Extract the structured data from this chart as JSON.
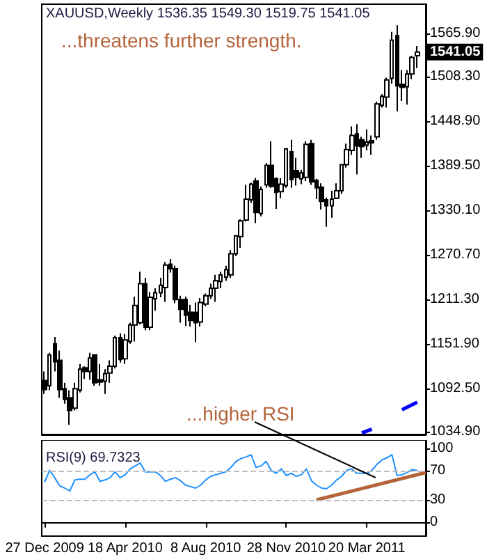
{
  "chart_data": [
    {
      "type": "candlestick",
      "title": "XAUUSD,Weekly 1536.35 1549.30 1519.75 1541.05",
      "annotations": [
        "...threatens further strength.",
        "...higher RSI",
        "1541.05"
      ],
      "x": [
        "2009-12-27",
        "2010-01-03",
        "2010-01-10",
        "2010-01-17",
        "2010-01-24",
        "2010-01-31",
        "2010-02-07",
        "2010-02-14",
        "2010-02-21",
        "2010-02-28",
        "2010-03-07",
        "2010-03-14",
        "2010-03-21",
        "2010-03-28",
        "2010-04-04",
        "2010-04-11",
        "2010-04-18",
        "2010-04-25",
        "2010-05-02",
        "2010-05-09",
        "2010-05-16",
        "2010-05-23",
        "2010-05-30",
        "2010-06-06",
        "2010-06-13",
        "2010-06-20",
        "2010-06-27",
        "2010-07-04",
        "2010-07-11",
        "2010-07-18",
        "2010-07-25",
        "2010-08-01",
        "2010-08-08",
        "2010-08-15",
        "2010-08-22",
        "2010-08-29",
        "2010-09-05",
        "2010-09-12",
        "2010-09-19",
        "2010-09-26",
        "2010-10-03",
        "2010-10-10",
        "2010-10-17",
        "2010-10-24",
        "2010-10-31",
        "2010-11-07",
        "2010-11-14",
        "2010-11-21",
        "2010-11-28",
        "2010-12-05",
        "2010-12-12",
        "2010-12-19",
        "2010-12-26",
        "2011-01-02",
        "2011-01-09",
        "2011-01-16",
        "2011-01-23",
        "2011-01-30",
        "2011-02-06",
        "2011-02-13",
        "2011-02-20",
        "2011-02-27",
        "2011-03-06",
        "2011-03-13",
        "2011-03-20",
        "2011-03-27",
        "2011-04-03",
        "2011-04-10",
        "2011-04-17",
        "2011-04-24",
        "2011-05-01",
        "2011-05-08",
        "2011-05-15",
        "2011-05-22",
        "2011-05-29"
      ],
      "ohlc": [
        [
          1103,
          1115,
          1085,
          1091
        ],
        [
          1096,
          1140,
          1090,
          1137
        ],
        [
          1152,
          1161,
          1115,
          1128
        ],
        [
          1130,
          1143,
          1080,
          1091
        ],
        [
          1092,
          1100,
          1072,
          1078
        ],
        [
          1080,
          1090,
          1044,
          1063
        ],
        [
          1066,
          1100,
          1063,
          1092
        ],
        [
          1090,
          1125,
          1087,
          1118
        ],
        [
          1120,
          1122,
          1105,
          1115
        ],
        [
          1115,
          1140,
          1104,
          1133
        ],
        [
          1137,
          1138,
          1096,
          1100
        ],
        [
          1104,
          1125,
          1096,
          1101
        ],
        [
          1102,
          1118,
          1085,
          1112
        ],
        [
          1113,
          1130,
          1100,
          1122
        ],
        [
          1122,
          1163,
          1119,
          1160
        ],
        [
          1160,
          1166,
          1127,
          1131
        ],
        [
          1132,
          1165,
          1125,
          1157
        ],
        [
          1155,
          1180,
          1152,
          1177
        ],
        [
          1177,
          1215,
          1155,
          1203
        ],
        [
          1180,
          1248,
          1178,
          1232
        ],
        [
          1232,
          1240,
          1170,
          1174
        ],
        [
          1174,
          1221,
          1170,
          1214
        ],
        [
          1212,
          1226,
          1196,
          1220
        ],
        [
          1220,
          1240,
          1214,
          1230
        ],
        [
          1227,
          1261,
          1208,
          1257
        ],
        [
          1258,
          1265,
          1247,
          1252
        ],
        [
          1252,
          1256,
          1206,
          1211
        ],
        [
          1211,
          1216,
          1180,
          1198
        ],
        [
          1211,
          1215,
          1176,
          1190
        ],
        [
          1194,
          1204,
          1175,
          1183
        ],
        [
          1194,
          1207,
          1154,
          1180
        ],
        [
          1181,
          1213,
          1175,
          1207
        ],
        [
          1205,
          1219,
          1202,
          1216
        ],
        [
          1216,
          1232,
          1212,
          1226
        ],
        [
          1226,
          1244,
          1208,
          1236
        ],
        [
          1235,
          1248,
          1226,
          1244
        ],
        [
          1241,
          1256,
          1236,
          1251
        ],
        [
          1244,
          1277,
          1240,
          1272
        ],
        [
          1272,
          1297,
          1269,
          1296
        ],
        [
          1295,
          1318,
          1280,
          1316
        ],
        [
          1317,
          1364,
          1315,
          1345
        ],
        [
          1344,
          1367,
          1340,
          1365
        ],
        [
          1369,
          1373,
          1313,
          1327
        ],
        [
          1326,
          1362,
          1322,
          1358
        ],
        [
          1364,
          1393,
          1360,
          1390
        ],
        [
          1390,
          1422,
          1360,
          1362
        ],
        [
          1372,
          1374,
          1332,
          1354
        ],
        [
          1355,
          1373,
          1346,
          1365
        ],
        [
          1363,
          1413,
          1360,
          1412
        ],
        [
          1408,
          1424,
          1360,
          1371
        ],
        [
          1383,
          1400,
          1363,
          1374
        ],
        [
          1372,
          1384,
          1365,
          1380
        ],
        [
          1374,
          1422,
          1369,
          1418
        ],
        [
          1419,
          1424,
          1364,
          1368
        ],
        [
          1370,
          1372,
          1345,
          1360
        ],
        [
          1361,
          1366,
          1331,
          1342
        ],
        [
          1344,
          1347,
          1308,
          1336
        ],
        [
          1336,
          1356,
          1320,
          1345
        ],
        [
          1346,
          1366,
          1345,
          1356
        ],
        [
          1356,
          1391,
          1352,
          1391
        ],
        [
          1391,
          1419,
          1387,
          1411
        ],
        [
          1410,
          1442,
          1404,
          1430
        ],
        [
          1432,
          1445,
          1378,
          1416
        ],
        [
          1424,
          1428,
          1400,
          1415
        ],
        [
          1417,
          1438,
          1410,
          1421
        ],
        [
          1423,
          1430,
          1404,
          1420
        ],
        [
          1428,
          1475,
          1424,
          1472
        ],
        [
          1470,
          1485,
          1467,
          1482
        ],
        [
          1481,
          1507,
          1467,
          1504
        ],
        [
          1506,
          1568,
          1499,
          1557
        ],
        [
          1563,
          1577,
          1462,
          1496
        ],
        [
          1498,
          1517,
          1476,
          1494
        ],
        [
          1495,
          1517,
          1471,
          1512
        ],
        [
          1512,
          1536,
          1505,
          1534
        ],
        [
          1536.35,
          1549.3,
          1519.75,
          1541.05
        ]
      ],
      "series": [
        {
          "type": "line",
          "color": "#0000ff",
          "x": [
            "2011-03-13",
            "2011-03-27",
            "2011-04-10",
            "2011-05-08",
            "2011-05-29"
          ],
          "values": [
            1033,
            1038,
            null,
            1064,
            1074
          ]
        }
      ],
      "xlim": [
        "2009-12-23",
        "2011-06-10"
      ],
      "ylim": [
        1031,
        1605
      ],
      "yticks": [
        {
          "value": 1034.9,
          "label": "1034.90"
        },
        {
          "value": 1092.5,
          "label": "1092.50"
        },
        {
          "value": 1151.9,
          "label": "1151.90"
        },
        {
          "value": 1211.3,
          "label": "1211.30"
        },
        {
          "value": 1270.7,
          "label": "1270.70"
        },
        {
          "value": 1330.1,
          "label": "1330.10"
        },
        {
          "value": 1389.5,
          "label": "1389.50"
        },
        {
          "value": 1448.9,
          "label": "1448.90"
        },
        {
          "value": 1508.3,
          "label": "1508.30"
        },
        {
          "value": 1565.9,
          "label": "1565.90"
        }
      ],
      "tick_labels": "y"
    },
    {
      "type": "line",
      "title": "RSI(9) 69.7323",
      "x": [
        "2009-12-27",
        "2010-01-03",
        "2010-01-10",
        "2010-01-17",
        "2010-01-24",
        "2010-01-31",
        "2010-02-07",
        "2010-02-14",
        "2010-02-21",
        "2010-02-28",
        "2010-03-07",
        "2010-03-14",
        "2010-03-21",
        "2010-03-28",
        "2010-04-04",
        "2010-04-11",
        "2010-04-18",
        "2010-04-25",
        "2010-05-02",
        "2010-05-09",
        "2010-05-16",
        "2010-05-23",
        "2010-05-30",
        "2010-06-06",
        "2010-06-13",
        "2010-06-20",
        "2010-06-27",
        "2010-07-04",
        "2010-07-11",
        "2010-07-18",
        "2010-07-25",
        "2010-08-01",
        "2010-08-08",
        "2010-08-15",
        "2010-08-22",
        "2010-08-29",
        "2010-09-05",
        "2010-09-12",
        "2010-09-19",
        "2010-09-26",
        "2010-10-03",
        "2010-10-10",
        "2010-10-17",
        "2010-10-24",
        "2010-10-31",
        "2010-11-07",
        "2010-11-14",
        "2010-11-21",
        "2010-11-28",
        "2010-12-05",
        "2010-12-12",
        "2010-12-19",
        "2010-12-26",
        "2011-01-02",
        "2011-01-09",
        "2011-01-16",
        "2011-01-23",
        "2011-01-30",
        "2011-02-06",
        "2011-02-13",
        "2011-02-20",
        "2011-02-27",
        "2011-03-06",
        "2011-03-13",
        "2011-03-20",
        "2011-03-27",
        "2011-04-03",
        "2011-04-10",
        "2011-04-17",
        "2011-04-24",
        "2011-05-01",
        "2011-05-08",
        "2011-05-15",
        "2011-05-22",
        "2011-05-29"
      ],
      "series": [
        {
          "color": "#1e90ff",
          "values": [
            54,
            70,
            60,
            49,
            46,
            42,
            57,
            58,
            58,
            64,
            68,
            55,
            57,
            60,
            68,
            60,
            64,
            72,
            76,
            80,
            68,
            68,
            68,
            63,
            55,
            58,
            60,
            56,
            50,
            48,
            46,
            50,
            57,
            62,
            64,
            66,
            68,
            74,
            82,
            86,
            88,
            91,
            74,
            76,
            82,
            70,
            66,
            72,
            63,
            66,
            62,
            64,
            72,
            56,
            50,
            46,
            45,
            50,
            57,
            62,
            70,
            72,
            66,
            66,
            66,
            70,
            78,
            84,
            87,
            91,
            63,
            64,
            67,
            71,
            70
          ]
        },
        {
          "type": "line",
          "color": "#b5643a",
          "x": [
            "2011-01-09",
            "2011-06-10"
          ],
          "values": [
            30,
            67
          ]
        }
      ],
      "xlim": [
        "2009-12-23",
        "2011-06-10"
      ],
      "xticks": [
        {
          "value": "2009-12-27",
          "label": "27 Dec 2009"
        },
        {
          "value": "2010-04-18",
          "label": "18 Apr 2010"
        },
        {
          "value": "2010-08-08",
          "label": "8 Aug 2010"
        },
        {
          "value": "2010-11-28",
          "label": "28 Nov 2010"
        },
        {
          "value": "2011-03-20",
          "label": "20 Mar 2011"
        }
      ],
      "ylim": [
        -19,
        111
      ],
      "yticks": [
        0,
        30,
        70,
        100
      ],
      "ref_lines": [
        {
          "axis": "y",
          "value": 30,
          "color": "#c0c0c0",
          "line_style": "dashed"
        },
        {
          "axis": "y",
          "value": 70,
          "color": "#c0c0c0",
          "line_style": "dashed"
        }
      ],
      "line_style": "solid"
    }
  ]
}
